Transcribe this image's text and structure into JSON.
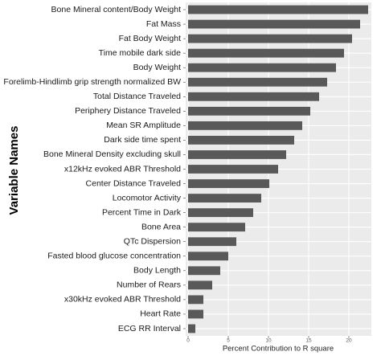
{
  "chart_data": {
    "type": "barh",
    "x_label": "Percent Contribution to R square",
    "y_label": "Variable Names",
    "categories": [
      "Bone Mineral content/Body Weight",
      "Fat Mass",
      "Fat Body Weight",
      "Time mobile dark side",
      "Body Weight",
      "Forelimb-Hindlimb grip strength normalized BW",
      "Total Distance Traveled",
      "Periphery Distance Traveled",
      "Mean SR Amplitude",
      "Dark side time spent",
      "Bone Mineral Density excluding skull",
      "x12kHz evoked ABR Threshold",
      "Center Distance Traveled",
      "Locomotor Activity",
      "Percent Time in Dark",
      "Bone Area",
      "QTc Dispersion",
      "Fasted blood glucose concentration",
      "Body Length",
      "Number of Rears",
      "x30kHz evoked ABR Threshold",
      "Heart Rate",
      "ECG RR Interval"
    ],
    "values": [
      22.4,
      21.4,
      20.4,
      19.4,
      18.4,
      17.3,
      16.3,
      15.2,
      14.2,
      13.2,
      12.2,
      11.2,
      10.1,
      9.1,
      8.1,
      7.1,
      6.0,
      5.0,
      4.0,
      3.0,
      1.9,
      1.9,
      0.9
    ],
    "color": "#595959",
    "xlim": [
      -0.3,
      22.8
    ],
    "xticks": [
      0,
      5,
      10,
      15,
      20
    ],
    "grid": true
  }
}
